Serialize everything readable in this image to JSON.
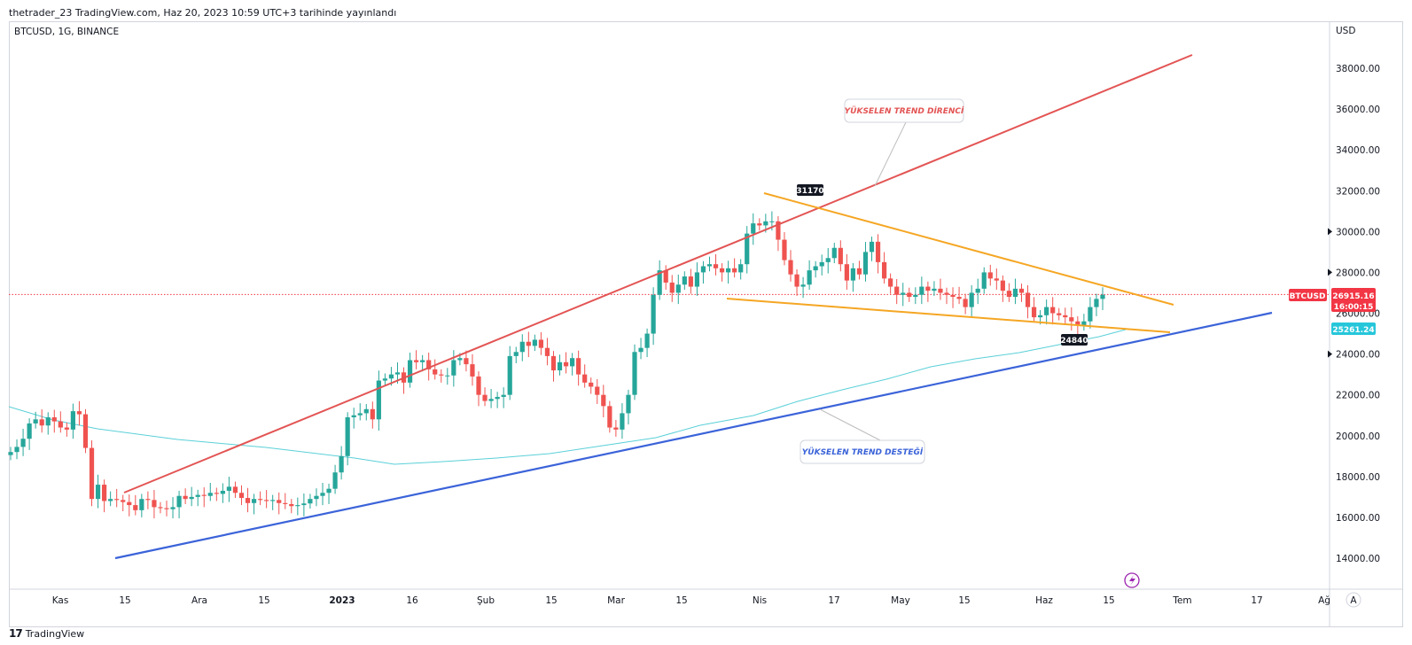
{
  "header": {
    "caption": "thetrader_23 TradingView.com, Haz 20, 2023 10:59 UTC+3 tarihinde yayınlandı"
  },
  "chart": {
    "symbol_label": "BTCUSD, 1G, BINANCE",
    "currency": "USD",
    "auto_button": "A",
    "lightning_icon": "lightning-icon"
  },
  "footer": {
    "brand": "TradingView",
    "logo_glyph": "17"
  },
  "colors": {
    "bull": "#26a69a",
    "bear": "#ef5350",
    "resistance": "#e35454",
    "support": "#3b63d9",
    "wedge": "#f5a623",
    "ma": "#5ad0d8",
    "price": "#f23645"
  },
  "chart_data": {
    "type": "candlestick",
    "xlabel": "",
    "ylabel": "",
    "ylim": [
      13000,
      39700
    ],
    "y_ticks": [
      "38000.00",
      "36000.00",
      "34000.00",
      "32000.00",
      "30000.00",
      "28000.00",
      "26000.00",
      "24000.00",
      "22000.00",
      "20000.00",
      "18000.00",
      "16000.00",
      "14000.00"
    ],
    "x_ticks": [
      "Kas",
      "15",
      "Ara",
      "15",
      "2023",
      "16",
      "Şub",
      "15",
      "Mar",
      "15",
      "Nis",
      "17",
      "May",
      "15",
      "Haz",
      "15",
      "Tem",
      "17",
      "Ağ"
    ],
    "price_label": {
      "symbol": "BTCUSD",
      "value": "26915.16",
      "countdown": "16:00:15"
    },
    "ma_label": {
      "value": "25261.24"
    },
    "annotations": [
      {
        "id": "res",
        "text": "YÜKSELEN TREND DİRENCİ"
      },
      {
        "id": "sup",
        "text": "YÜKSELEN TREND  DESTEĞİ"
      }
    ],
    "price_markers": [
      "31170",
      "24840"
    ],
    "closes": [
      19200,
      19450,
      19850,
      20600,
      20800,
      20500,
      20900,
      20700,
      20400,
      20300,
      21200,
      21050,
      19400,
      16900,
      17600,
      16800,
      16900,
      16850,
      16750,
      16600,
      16350,
      16900,
      16850,
      16500,
      16450,
      16400,
      16500,
      17050,
      16900,
      17000,
      17100,
      17050,
      17200,
      17150,
      17300,
      17500,
      17200,
      16950,
      16700,
      16900,
      16850,
      16800,
      16850,
      16700,
      16650,
      16550,
      16600,
      16680,
      16900,
      17050,
      17200,
      17400,
      18200,
      19000,
      20900,
      21000,
      21100,
      21300,
      20800,
      22700,
      22800,
      23000,
      23100,
      22600,
      23700,
      23600,
      23700,
      23250,
      23000,
      22950,
      22950,
      23700,
      23800,
      23500,
      22900,
      22000,
      21700,
      21800,
      21900,
      22000,
      23900,
      24100,
      24600,
      24400,
      24700,
      24300,
      23900,
      23200,
      23600,
      23400,
      23800,
      23000,
      22600,
      22400,
      22000,
      21450,
      20400,
      20300,
      21100,
      22000,
      24100,
      24300,
      25000,
      26900,
      28100,
      27500,
      27000,
      27400,
      27800,
      27300,
      28000,
      28300,
      28400,
      28200,
      28000,
      28200,
      28000,
      28400,
      29900,
      30400,
      30300,
      30500,
      30500,
      29600,
      28600,
      27900,
      27300,
      27400,
      28100,
      28300,
      28500,
      28700,
      29200,
      28400,
      27600,
      28200,
      27900,
      29000,
      29500,
      28500,
      27700,
      27300,
      26900,
      27000,
      26800,
      26900,
      27300,
      27100,
      27200,
      27000,
      26900,
      26800,
      26700,
      26300,
      27000,
      27200,
      28000,
      27700,
      27600,
      27100,
      26800,
      27200,
      27000,
      26300,
      25800,
      25900,
      26300,
      26000,
      25900,
      25800,
      25600,
      25400,
      25600,
      26300,
      26700,
      26900
    ]
  }
}
